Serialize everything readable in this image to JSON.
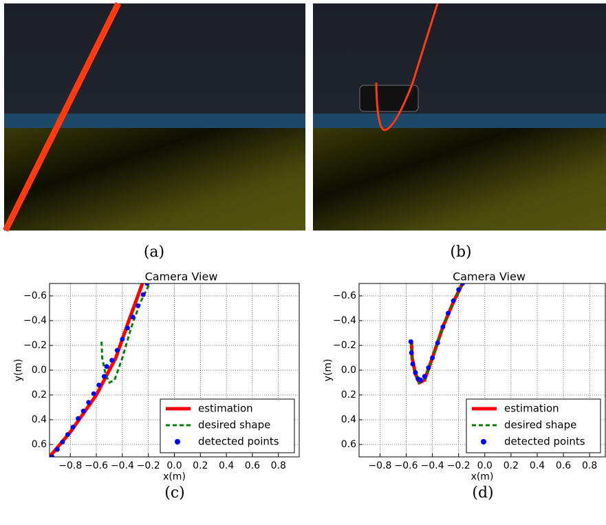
{
  "captions": [
    "(a)",
    "(b)",
    "(c)",
    "(d)"
  ],
  "chart_data": [
    {
      "type": "line",
      "title": "Camera View",
      "x_label": "x(m)",
      "y_label": "y(m)",
      "xlim": [
        -0.96,
        0.96
      ],
      "ylim": [
        0.7,
        -0.7
      ],
      "grid": true,
      "legend": "lower right",
      "xticks": [
        {
          "value": -0.8,
          "label": "−0.8"
        },
        {
          "value": -0.6,
          "label": "−0.6"
        },
        {
          "value": -0.4,
          "label": "−0.4"
        },
        {
          "value": -0.2,
          "label": "−0.2"
        },
        {
          "value": 0,
          "label": "0.0"
        },
        0.2,
        0.4,
        0.6,
        0.8
      ],
      "yticks": [
        {
          "value": -0.6,
          "label": "−0.6"
        },
        {
          "value": -0.4,
          "label": "−0.4"
        },
        {
          "value": -0.2,
          "label": "−0.2"
        },
        {
          "value": 0,
          "label": "0.0"
        },
        0.2,
        0.4,
        0.6
      ],
      "series": [
        {
          "name": "estimation",
          "color": "#ff0000",
          "style": "solid",
          "x": [
            -0.96,
            -0.8,
            -0.6,
            -0.45,
            -0.35,
            -0.246
          ],
          "values": [
            0.7,
            0.5,
            0.2,
            -0.1,
            -0.4,
            -0.7
          ]
        },
        {
          "name": "desired shape",
          "color": "#008000",
          "style": "dashed",
          "x": [
            -0.56,
            -0.555,
            -0.53,
            -0.5,
            -0.46,
            -0.4,
            -0.33,
            -0.26,
            -0.19
          ],
          "values": [
            -0.23,
            -0.1,
            0.03,
            0.1,
            0.08,
            -0.1,
            -0.35,
            -0.55,
            -0.7
          ]
        },
        {
          "name": "detected points",
          "color": "#0000ff",
          "style": "points",
          "x": [
            -0.94,
            -0.9,
            -0.86,
            -0.82,
            -0.78,
            -0.74,
            -0.7,
            -0.66,
            -0.62,
            -0.58,
            -0.54,
            -0.52,
            -0.48,
            -0.44,
            -0.4,
            -0.36,
            -0.32,
            -0.28,
            -0.24,
            -0.21
          ],
          "values": [
            0.7,
            0.64,
            0.58,
            0.52,
            0.46,
            0.39,
            0.33,
            0.26,
            0.19,
            0.12,
            0.05,
            -0.03,
            -0.08,
            -0.16,
            -0.25,
            -0.34,
            -0.43,
            -0.52,
            -0.61,
            -0.7
          ]
        }
      ]
    },
    {
      "type": "line",
      "title": "Camera View",
      "x_label": "x(m)",
      "y_label": "y(m)",
      "xlim": [
        -0.96,
        0.92
      ],
      "ylim": [
        0.7,
        -0.7
      ],
      "grid": true,
      "legend": "lower right",
      "xticks": [
        {
          "value": -0.8,
          "label": "−0.8"
        },
        {
          "value": -0.6,
          "label": "−0.6"
        },
        {
          "value": -0.4,
          "label": "−0.4"
        },
        {
          "value": -0.2,
          "label": "−0.2"
        },
        {
          "value": 0,
          "label": "0.0"
        },
        0.2,
        0.4,
        0.6,
        0.8
      ],
      "yticks": [
        {
          "value": -0.6,
          "label": "−0.6"
        },
        {
          "value": -0.4,
          "label": "−0.4"
        },
        {
          "value": -0.2,
          "label": "−0.2"
        },
        {
          "value": 0,
          "label": "0.0"
        },
        0.2,
        0.4,
        0.6
      ],
      "series": [
        {
          "name": "estimation",
          "color": "#ff0000",
          "style": "solid",
          "x": [
            -0.56,
            -0.555,
            -0.53,
            -0.5,
            -0.46,
            -0.4,
            -0.32,
            -0.24,
            -0.17
          ],
          "values": [
            -0.23,
            -0.1,
            0.03,
            0.1,
            0.08,
            -0.1,
            -0.35,
            -0.55,
            -0.7
          ]
        },
        {
          "name": "desired shape",
          "color": "#008000",
          "style": "dashed",
          "x": [
            -0.56,
            -0.555,
            -0.53,
            -0.5,
            -0.46,
            -0.4,
            -0.32,
            -0.24,
            -0.17
          ],
          "values": [
            -0.23,
            -0.1,
            0.03,
            0.1,
            0.08,
            -0.1,
            -0.35,
            -0.55,
            -0.7
          ]
        },
        {
          "name": "detected points",
          "color": "#0000ff",
          "style": "points",
          "x": [
            -0.565,
            -0.56,
            -0.55,
            -0.53,
            -0.51,
            -0.49,
            -0.46,
            -0.43,
            -0.4,
            -0.36,
            -0.32,
            -0.28,
            -0.24,
            -0.2,
            -0.17
          ],
          "values": [
            -0.23,
            -0.14,
            -0.05,
            0.02,
            0.07,
            0.08,
            0.05,
            -0.02,
            -0.1,
            -0.22,
            -0.35,
            -0.46,
            -0.56,
            -0.65,
            -0.7
          ]
        }
      ]
    }
  ]
}
